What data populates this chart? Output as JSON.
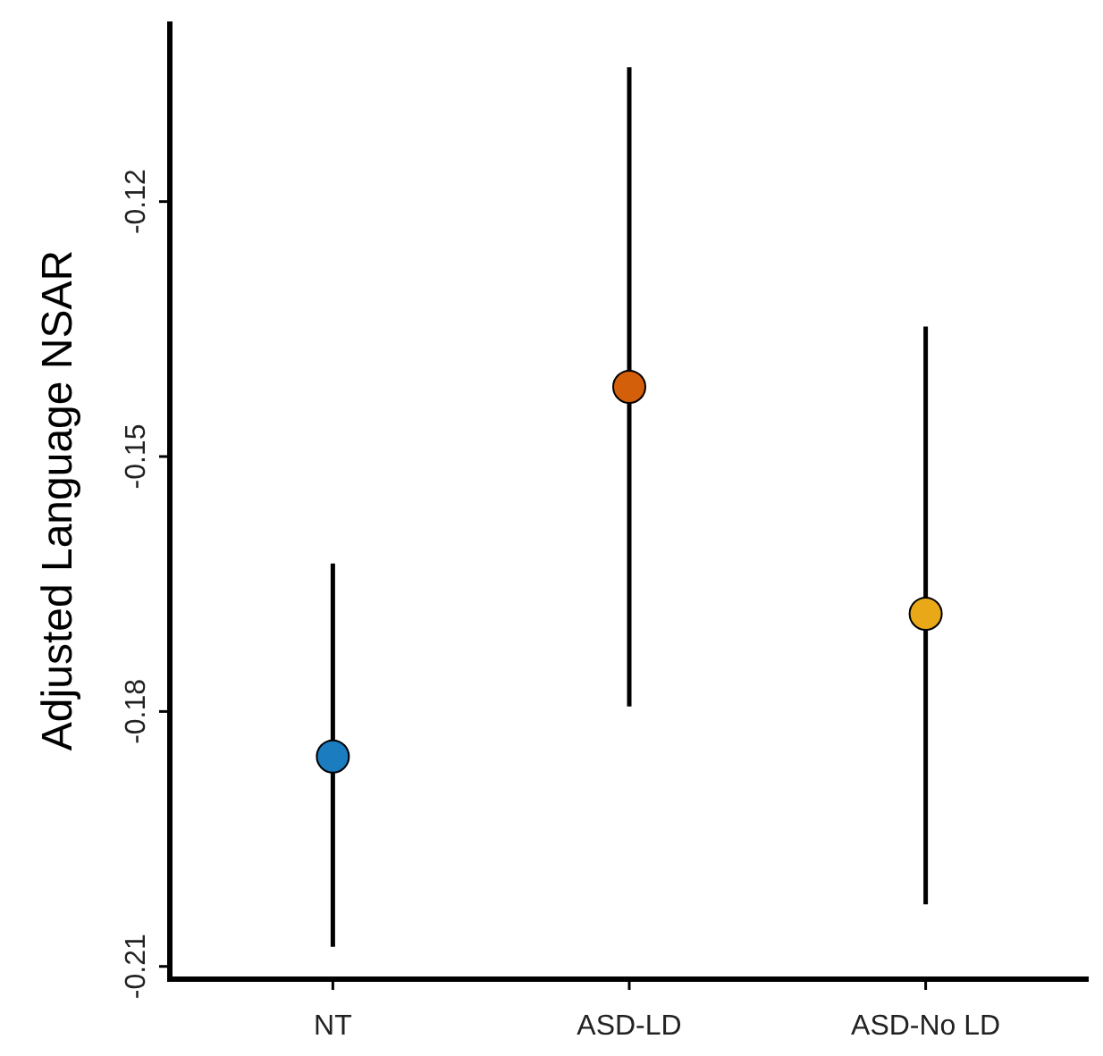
{
  "chart_data": {
    "type": "scatter",
    "ylabel": "Adjusted Language NSAR",
    "categories": [
      "NT",
      "ASD-LD",
      "ASD-No LD"
    ],
    "values": [
      -0.1853,
      -0.1418,
      -0.1685
    ],
    "errors": [
      [
        -0.2077,
        -0.1626
      ],
      [
        -0.1794,
        -0.1042
      ],
      [
        -0.2027,
        -0.1347
      ]
    ],
    "colors": [
      "#1b7cc0",
      "#d35f0a",
      "#e8a818"
    ],
    "ylim": [
      -0.2115,
      -0.0988
    ],
    "yticks": [
      -0.12,
      -0.15,
      -0.18,
      -0.21
    ],
    "grid": false,
    "marker": "circle"
  }
}
